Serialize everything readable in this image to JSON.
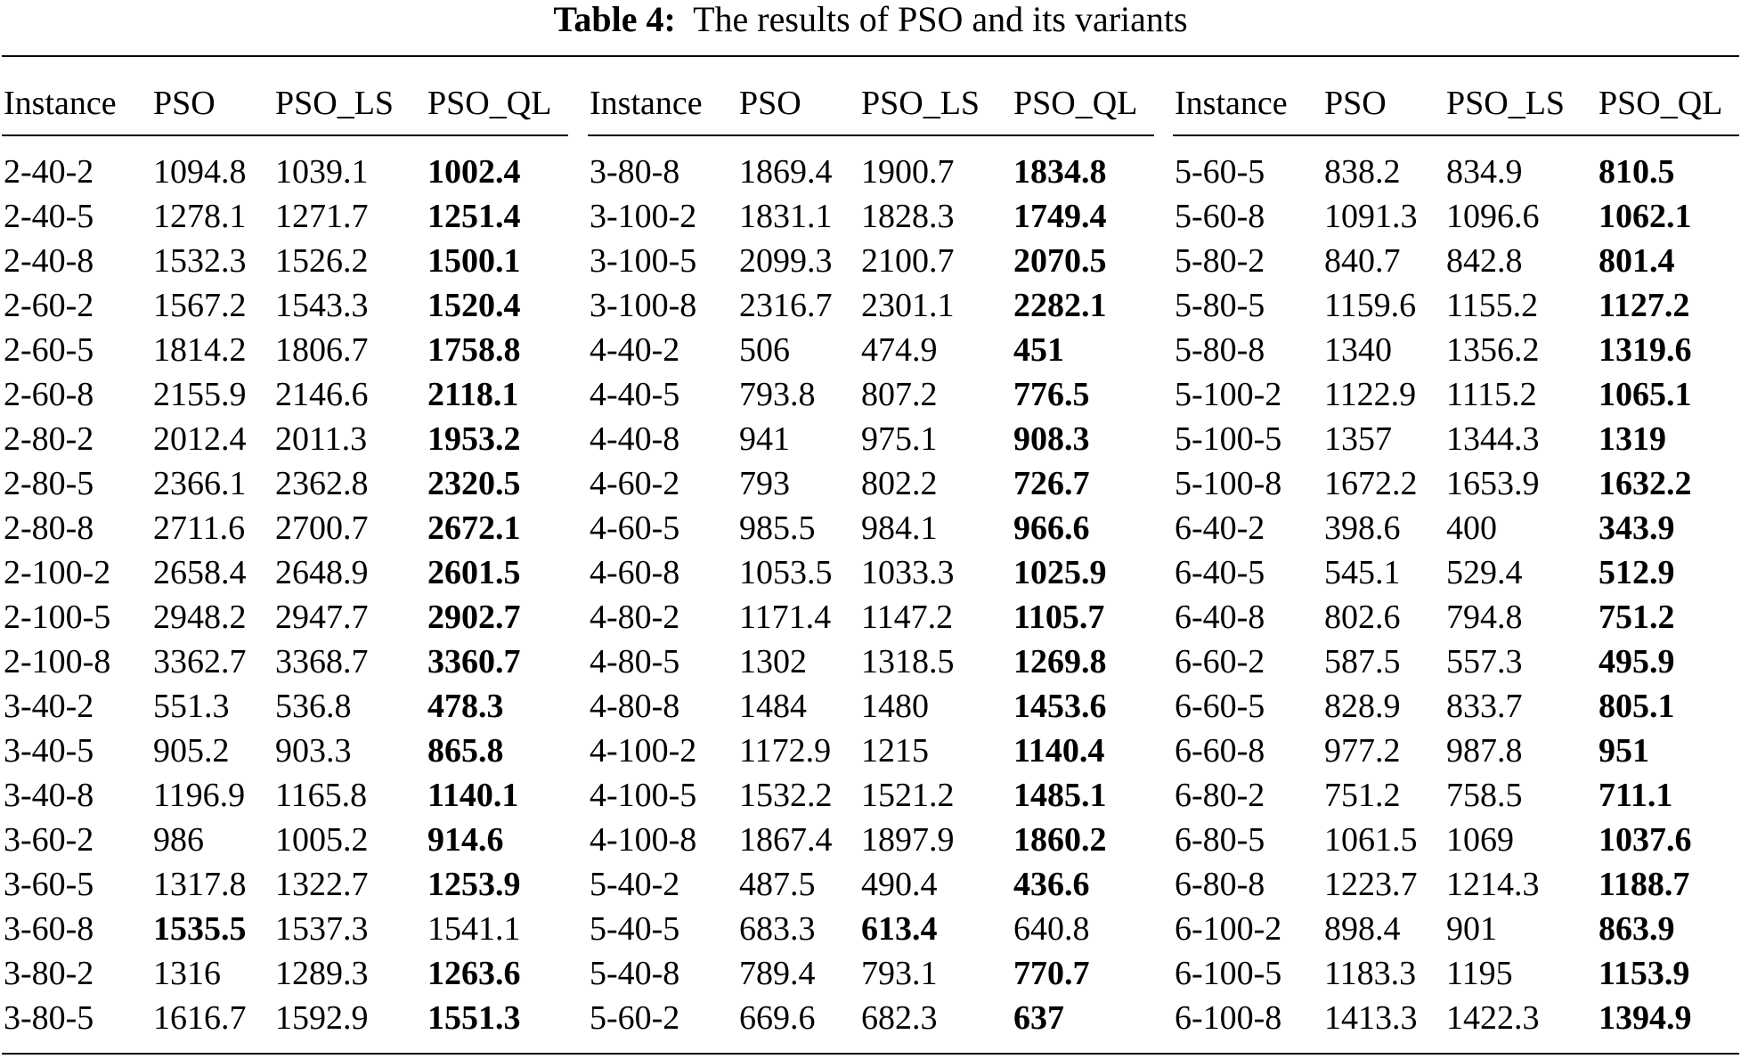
{
  "caption": {
    "label": "Table 4:",
    "text": "The results of PSO and its variants"
  },
  "columns": [
    "Instance",
    "PSO",
    "PSO_LS",
    "PSO_QL"
  ],
  "groups": [
    {
      "rows": [
        [
          "2-40-2",
          "1094.8",
          "1039.1",
          "1002.4"
        ],
        [
          "2-40-5",
          "1278.1",
          "1271.7",
          "1251.4"
        ],
        [
          "2-40-8",
          "1532.3",
          "1526.2",
          "1500.1"
        ],
        [
          "2-60-2",
          "1567.2",
          "1543.3",
          "1520.4"
        ],
        [
          "2-60-5",
          "1814.2",
          "1806.7",
          "1758.8"
        ],
        [
          "2-60-8",
          "2155.9",
          "2146.6",
          "2118.1"
        ],
        [
          "2-80-2",
          "2012.4",
          "2011.3",
          "1953.2"
        ],
        [
          "2-80-5",
          "2366.1",
          "2362.8",
          "2320.5"
        ],
        [
          "2-80-8",
          "2711.6",
          "2700.7",
          "2672.1"
        ],
        [
          "2-100-2",
          "2658.4",
          "2648.9",
          "2601.5"
        ],
        [
          "2-100-5",
          "2948.2",
          "2947.7",
          "2902.7"
        ],
        [
          "2-100-8",
          "3362.7",
          "3368.7",
          "3360.7"
        ],
        [
          "3-40-2",
          "551.3",
          "536.8",
          "478.3"
        ],
        [
          "3-40-5",
          "905.2",
          "903.3",
          "865.8"
        ],
        [
          "3-40-8",
          "1196.9",
          "1165.8",
          "1140.1"
        ],
        [
          "3-60-2",
          "986",
          "1005.2",
          "914.6"
        ],
        [
          "3-60-5",
          "1317.8",
          "1322.7",
          "1253.9"
        ],
        [
          "3-60-8",
          "1535.5",
          "1537.3",
          "1541.1"
        ],
        [
          "3-80-2",
          "1316",
          "1289.3",
          "1263.6"
        ],
        [
          "3-80-5",
          "1616.7",
          "1592.9",
          "1551.3"
        ]
      ],
      "bold": [
        3,
        3,
        3,
        3,
        3,
        3,
        3,
        3,
        3,
        3,
        3,
        3,
        3,
        3,
        3,
        3,
        3,
        1,
        3,
        3
      ]
    },
    {
      "rows": [
        [
          "3-80-8",
          "1869.4",
          "1900.7",
          "1834.8"
        ],
        [
          "3-100-2",
          "1831.1",
          "1828.3",
          "1749.4"
        ],
        [
          "3-100-5",
          "2099.3",
          "2100.7",
          "2070.5"
        ],
        [
          "3-100-8",
          "2316.7",
          "2301.1",
          "2282.1"
        ],
        [
          "4-40-2",
          "506",
          "474.9",
          "451"
        ],
        [
          "4-40-5",
          "793.8",
          "807.2",
          "776.5"
        ],
        [
          "4-40-8",
          "941",
          "975.1",
          "908.3"
        ],
        [
          "4-60-2",
          "793",
          "802.2",
          "726.7"
        ],
        [
          "4-60-5",
          "985.5",
          "984.1",
          "966.6"
        ],
        [
          "4-60-8",
          "1053.5",
          "1033.3",
          "1025.9"
        ],
        [
          "4-80-2",
          "1171.4",
          "1147.2",
          "1105.7"
        ],
        [
          "4-80-5",
          "1302",
          "1318.5",
          "1269.8"
        ],
        [
          "4-80-8",
          "1484",
          "1480",
          "1453.6"
        ],
        [
          "4-100-2",
          "1172.9",
          "1215",
          "1140.4"
        ],
        [
          "4-100-5",
          "1532.2",
          "1521.2",
          "1485.1"
        ],
        [
          "4-100-8",
          "1867.4",
          "1897.9",
          "1860.2"
        ],
        [
          "5-40-2",
          "487.5",
          "490.4",
          "436.6"
        ],
        [
          "5-40-5",
          "683.3",
          "613.4",
          "640.8"
        ],
        [
          "5-40-8",
          "789.4",
          "793.1",
          "770.7"
        ],
        [
          "5-60-2",
          "669.6",
          "682.3",
          "637"
        ]
      ],
      "bold": [
        3,
        3,
        3,
        3,
        3,
        3,
        3,
        3,
        3,
        3,
        3,
        3,
        3,
        3,
        3,
        3,
        3,
        2,
        3,
        3
      ]
    },
    {
      "rows": [
        [
          "5-60-5",
          "838.2",
          "834.9",
          "810.5"
        ],
        [
          "5-60-8",
          "1091.3",
          "1096.6",
          "1062.1"
        ],
        [
          "5-80-2",
          "840.7",
          "842.8",
          "801.4"
        ],
        [
          "5-80-5",
          "1159.6",
          "1155.2",
          "1127.2"
        ],
        [
          "5-80-8",
          "1340",
          "1356.2",
          "1319.6"
        ],
        [
          "5-100-2",
          "1122.9",
          "1115.2",
          "1065.1"
        ],
        [
          "5-100-5",
          "1357",
          "1344.3",
          "1319"
        ],
        [
          "5-100-8",
          "1672.2",
          "1653.9",
          "1632.2"
        ],
        [
          "6-40-2",
          "398.6",
          "400",
          "343.9"
        ],
        [
          "6-40-5",
          "545.1",
          "529.4",
          "512.9"
        ],
        [
          "6-40-8",
          "802.6",
          "794.8",
          "751.2"
        ],
        [
          "6-60-2",
          "587.5",
          "557.3",
          "495.9"
        ],
        [
          "6-60-5",
          "828.9",
          "833.7",
          "805.1"
        ],
        [
          "6-60-8",
          "977.2",
          "987.8",
          "951"
        ],
        [
          "6-80-2",
          "751.2",
          "758.5",
          "711.1"
        ],
        [
          "6-80-5",
          "1061.5",
          "1069",
          "1037.6"
        ],
        [
          "6-80-8",
          "1223.7",
          "1214.3",
          "1188.7"
        ],
        [
          "6-100-2",
          "898.4",
          "901",
          "863.9"
        ],
        [
          "6-100-5",
          "1183.3",
          "1195",
          "1153.9"
        ],
        [
          "6-100-8",
          "1413.3",
          "1422.3",
          "1394.9"
        ]
      ],
      "bold": [
        3,
        3,
        3,
        3,
        3,
        3,
        3,
        3,
        3,
        3,
        3,
        3,
        3,
        3,
        3,
        3,
        3,
        3,
        3,
        3
      ]
    }
  ]
}
